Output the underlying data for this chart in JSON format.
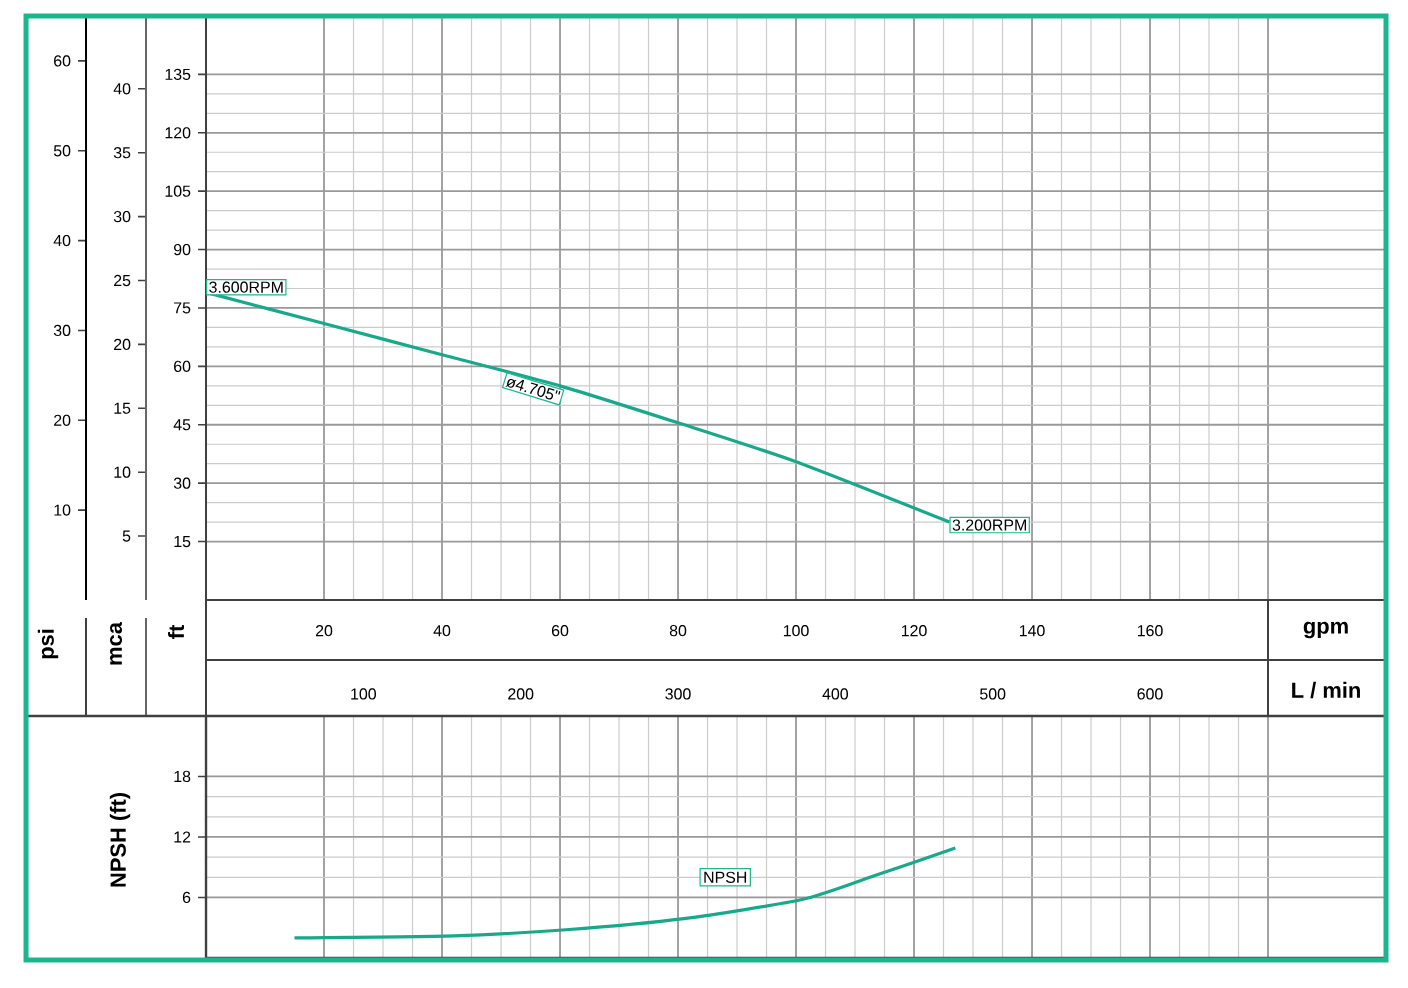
{
  "chart_data": [
    {
      "type": "line",
      "xlabel": "gpm",
      "x2label": "L / min",
      "ylabel": "ft",
      "y2label": "psi",
      "y3label": "mca",
      "xlim": [
        0,
        200
      ],
      "xticks": [
        20,
        40,
        60,
        80,
        100,
        120,
        140,
        160,
        {
          "value": 180,
          "label": null
        }
      ],
      "x2lim": [
        0,
        750
      ],
      "x2ticks": [
        100,
        200,
        300,
        400,
        500,
        600
      ],
      "ylim": [
        0,
        150
      ],
      "yticks": [
        15,
        30,
        45,
        60,
        75,
        90,
        105,
        120,
        135
      ],
      "y2lim": [
        0,
        65
      ],
      "y2ticks": [
        10,
        20,
        30,
        40,
        50,
        60
      ],
      "y3lim": [
        0,
        45.7
      ],
      "y3ticks": [
        5,
        10,
        15,
        20,
        25,
        30,
        35,
        40
      ],
      "grid": true,
      "series": [
        {
          "color": "#19a98a",
          "x": [
            0,
            20,
            40,
            60,
            80,
            100,
            126
          ],
          "values": [
            79,
            71,
            63,
            55,
            45.5,
            35.5,
            20
          ]
        }
      ],
      "annotations": [
        {
          "text": "3.600RPM",
          "x": 0,
          "y": 79
        },
        {
          "text": "ø4.705\"",
          "x": 56,
          "y": 57
        },
        {
          "text": "3.200RPM",
          "x": 126,
          "y": 20
        }
      ]
    },
    {
      "type": "line",
      "ylabel": "NPSH (ft)",
      "xlim": [
        0,
        200
      ],
      "xticks": [
        {
          "value": 20,
          "label": null
        },
        {
          "value": 40,
          "label": null
        },
        {
          "value": 60,
          "label": null
        },
        {
          "value": 80,
          "label": null
        },
        {
          "value": 100,
          "label": null
        },
        {
          "value": 120,
          "label": null
        },
        {
          "value": 140,
          "label": null
        },
        {
          "value": 160,
          "label": null
        },
        {
          "value": 180,
          "label": null
        }
      ],
      "ylim": [
        0,
        24
      ],
      "yticks": [
        6,
        12,
        18
      ],
      "grid": true,
      "tick_labels": "y",
      "series": [
        {
          "color": "#19a98a",
          "x": [
            15,
            42,
            61,
            81,
            101,
            113,
            127
          ],
          "values": [
            2.0,
            2.2,
            2.8,
            3.9,
            5.8,
            8.1,
            10.9
          ]
        }
      ],
      "annotations": [
        "NPSH"
      ]
    }
  ]
}
